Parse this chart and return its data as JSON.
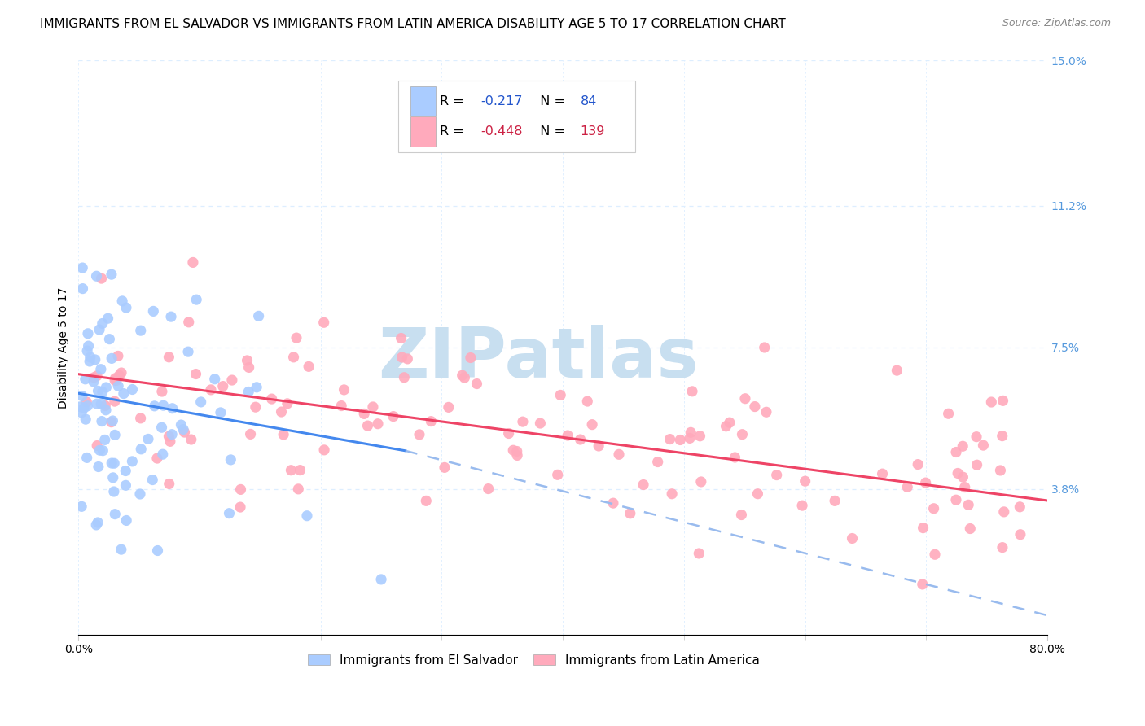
{
  "title": "IMMIGRANTS FROM EL SALVADOR VS IMMIGRANTS FROM LATIN AMERICA DISABILITY AGE 5 TO 17 CORRELATION CHART",
  "source": "Source: ZipAtlas.com",
  "ylabel": "Disability Age 5 to 17",
  "right_yticks": [
    3.8,
    7.5,
    11.2,
    15.0
  ],
  "right_ytick_labels": [
    "3.8%",
    "7.5%",
    "11.2%",
    "15.0%"
  ],
  "legend_entries": [
    {
      "label": "Immigrants from El Salvador",
      "R": -0.217,
      "N": 84,
      "color": "#aaccff"
    },
    {
      "label": "Immigrants from Latin America",
      "R": -0.448,
      "N": 139,
      "color": "#ffaabc"
    }
  ],
  "xlim": [
    0,
    80
  ],
  "ylim": [
    0,
    15
  ],
  "blue_line_color": "#4488ee",
  "pink_line_color": "#ee4466",
  "dashed_line_color": "#99bbee",
  "watermark": "ZIPatlas",
  "watermark_color": "#c8dff0",
  "grid_color": "#ddeeff",
  "title_fontsize": 11,
  "axis_label_fontsize": 10,
  "tick_fontsize": 10,
  "right_tick_color": "#5599dd",
  "legend_R_color_blue": "#2255cc",
  "legend_R_color_pink": "#cc2244",
  "legend_N_color_blue": "#2255cc",
  "legend_N_color_pink": "#cc2244",
  "blue_line_x0": 0,
  "blue_line_x1": 27,
  "blue_line_y0": 6.3,
  "blue_line_y1": 4.8,
  "pink_line_x0": 0,
  "pink_line_x1": 80,
  "pink_line_y0": 6.8,
  "pink_line_y1": 3.5,
  "dashed_x0": 27,
  "dashed_x1": 80,
  "dashed_y0": 4.8,
  "dashed_y1": 0.5
}
